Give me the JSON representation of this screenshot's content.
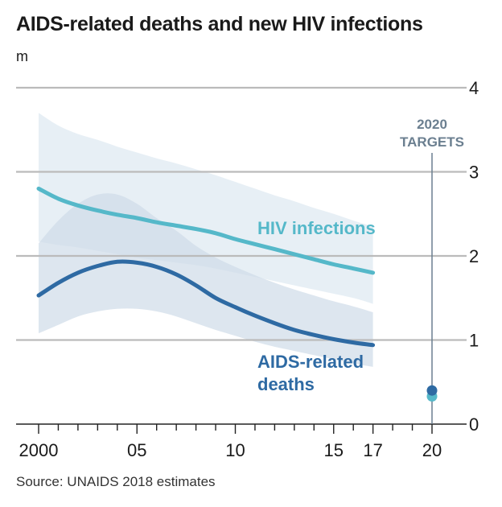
{
  "chart_data": {
    "type": "line",
    "title": "AIDS-related deaths and new HIV infections",
    "unit": "m",
    "source": "Source: UNAIDS 2018 estimates",
    "y_ticks": [
      "0",
      "1",
      "2",
      "3",
      "4"
    ],
    "y_tick_values": [
      0,
      1,
      2,
      3,
      4
    ],
    "ylim": [
      0,
      4
    ],
    "x_tick_values": [
      2000,
      2005,
      2010,
      2015,
      2017,
      2020
    ],
    "x_tick_labels": [
      "2000",
      "05",
      "10",
      "15",
      "17",
      "20"
    ],
    "xlim": [
      2000,
      2020
    ],
    "grid": true,
    "colors": {
      "hiv": "#55b8c9",
      "aids": "#2e6aa3",
      "hiv_band": "#e3ecf3",
      "aids_band": "#cfdce8",
      "grid": "#bbbbbb",
      "target_line": "#6b7f90"
    },
    "series": [
      {
        "name": "HIV infections",
        "x": [
          2000,
          2001,
          2002,
          2003,
          2004,
          2005,
          2006,
          2007,
          2008,
          2009,
          2010,
          2011,
          2012,
          2013,
          2014,
          2015,
          2016,
          2017
        ],
        "y": [
          2.8,
          2.68,
          2.6,
          2.54,
          2.49,
          2.45,
          2.4,
          2.36,
          2.32,
          2.27,
          2.2,
          2.14,
          2.08,
          2.02,
          1.96,
          1.9,
          1.85,
          1.8
        ],
        "lower": [
          2.17,
          2.13,
          2.1,
          2.06,
          2.02,
          1.98,
          1.95,
          1.92,
          1.89,
          1.85,
          1.8,
          1.75,
          1.7,
          1.65,
          1.6,
          1.55,
          1.5,
          1.43
        ],
        "upper": [
          3.7,
          3.55,
          3.45,
          3.38,
          3.3,
          3.23,
          3.16,
          3.1,
          3.03,
          2.96,
          2.88,
          2.8,
          2.72,
          2.65,
          2.57,
          2.5,
          2.42,
          2.35
        ],
        "target": 0.33
      },
      {
        "name": "AIDS-related deaths",
        "x": [
          2000,
          2001,
          2002,
          2003,
          2004,
          2005,
          2006,
          2007,
          2008,
          2009,
          2010,
          2011,
          2012,
          2013,
          2014,
          2015,
          2016,
          2017
        ],
        "y": [
          1.53,
          1.68,
          1.8,
          1.88,
          1.93,
          1.92,
          1.87,
          1.78,
          1.65,
          1.5,
          1.39,
          1.29,
          1.2,
          1.12,
          1.06,
          1.01,
          0.97,
          0.94
        ],
        "lower": [
          1.08,
          1.18,
          1.28,
          1.34,
          1.37,
          1.37,
          1.34,
          1.28,
          1.2,
          1.12,
          1.05,
          0.98,
          0.92,
          0.87,
          0.82,
          0.77,
          0.72,
          0.68
        ],
        "upper": [
          2.15,
          2.42,
          2.62,
          2.73,
          2.73,
          2.62,
          2.45,
          2.3,
          2.12,
          1.98,
          1.87,
          1.77,
          1.68,
          1.6,
          1.53,
          1.46,
          1.4,
          1.33
        ],
        "target": 0.4
      }
    ],
    "labels": {
      "hiv_label": "HIV infections",
      "aids_label_line1": "AIDS-related",
      "aids_label_line2": "deaths",
      "target_line1": "2020",
      "target_line2": "TARGETS"
    }
  }
}
